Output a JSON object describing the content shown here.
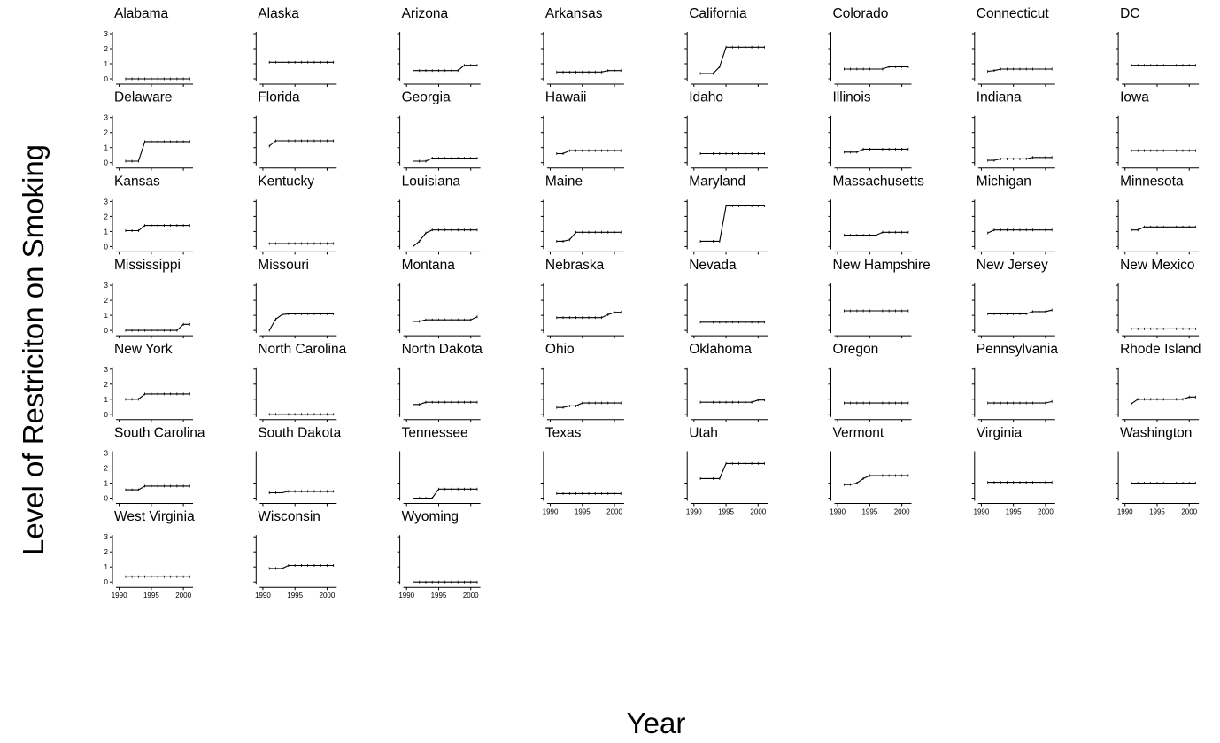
{
  "chart_data": {
    "type": "line",
    "xlabel": "Year",
    "ylabel": "Level of Restriciton on Smoking",
    "x": [
      1991,
      1992,
      1993,
      1994,
      1995,
      1996,
      1997,
      1998,
      1999,
      2000,
      2001
    ],
    "xlim": [
      1989.5,
      2001.5
    ],
    "ylim": [
      -0.05,
      3.1
    ],
    "yticks": [
      0,
      1,
      2,
      3
    ],
    "xticks": [
      1990,
      1995,
      2000
    ],
    "panels": [
      {
        "state": "Alabama",
        "values": [
          0,
          0,
          0,
          0,
          0,
          0,
          0,
          0,
          0,
          0,
          0
        ]
      },
      {
        "state": "Alaska",
        "values": [
          1.1,
          1.1,
          1.1,
          1.1,
          1.1,
          1.1,
          1.1,
          1.1,
          1.1,
          1.1,
          1.1
        ]
      },
      {
        "state": "Arizona",
        "values": [
          0.55,
          0.55,
          0.55,
          0.55,
          0.55,
          0.55,
          0.55,
          0.55,
          0.9,
          0.9,
          0.9
        ]
      },
      {
        "state": "Arkansas",
        "values": [
          0.45,
          0.45,
          0.45,
          0.45,
          0.45,
          0.45,
          0.45,
          0.45,
          0.55,
          0.55,
          0.55
        ]
      },
      {
        "state": "California",
        "values": [
          0.35,
          0.35,
          0.35,
          0.8,
          2.1,
          2.1,
          2.1,
          2.1,
          2.1,
          2.1,
          2.1
        ]
      },
      {
        "state": "Colorado",
        "values": [
          0.65,
          0.65,
          0.65,
          0.65,
          0.65,
          0.65,
          0.65,
          0.8,
          0.8,
          0.8,
          0.8
        ]
      },
      {
        "state": "Connecticut",
        "values": [
          0.5,
          0.55,
          0.65,
          0.65,
          0.65,
          0.65,
          0.65,
          0.65,
          0.65,
          0.65,
          0.65
        ]
      },
      {
        "state": "DC",
        "values": [
          0.9,
          0.9,
          0.9,
          0.9,
          0.9,
          0.9,
          0.9,
          0.9,
          0.9,
          0.9,
          0.9
        ]
      },
      {
        "state": "Delaware",
        "values": [
          0.1,
          0.1,
          0.1,
          1.4,
          1.4,
          1.4,
          1.4,
          1.4,
          1.4,
          1.4,
          1.4
        ]
      },
      {
        "state": "Florida",
        "values": [
          1.1,
          1.45,
          1.45,
          1.45,
          1.45,
          1.45,
          1.45,
          1.45,
          1.45,
          1.45,
          1.45
        ]
      },
      {
        "state": "Georgia",
        "values": [
          0.1,
          0.1,
          0.1,
          0.3,
          0.3,
          0.3,
          0.3,
          0.3,
          0.3,
          0.3,
          0.3
        ]
      },
      {
        "state": "Hawaii",
        "values": [
          0.6,
          0.6,
          0.8,
          0.8,
          0.8,
          0.8,
          0.8,
          0.8,
          0.8,
          0.8,
          0.8
        ]
      },
      {
        "state": "Idaho",
        "values": [
          0.6,
          0.6,
          0.6,
          0.6,
          0.6,
          0.6,
          0.6,
          0.6,
          0.6,
          0.6,
          0.6
        ]
      },
      {
        "state": "Illinois",
        "values": [
          0.7,
          0.7,
          0.7,
          0.9,
          0.9,
          0.9,
          0.9,
          0.9,
          0.9,
          0.9,
          0.9
        ]
      },
      {
        "state": "Indiana",
        "values": [
          0.15,
          0.15,
          0.25,
          0.25,
          0.25,
          0.25,
          0.25,
          0.35,
          0.35,
          0.35,
          0.35
        ]
      },
      {
        "state": "Iowa",
        "values": [
          0.8,
          0.8,
          0.8,
          0.8,
          0.8,
          0.8,
          0.8,
          0.8,
          0.8,
          0.8,
          0.8
        ]
      },
      {
        "state": "Kansas",
        "values": [
          1.05,
          1.05,
          1.05,
          1.4,
          1.4,
          1.4,
          1.4,
          1.4,
          1.4,
          1.4,
          1.4
        ]
      },
      {
        "state": "Kentucky",
        "values": [
          0.2,
          0.2,
          0.2,
          0.2,
          0.2,
          0.2,
          0.2,
          0.2,
          0.2,
          0.2,
          0.2
        ]
      },
      {
        "state": "Louisiana",
        "values": [
          0.0,
          0.35,
          0.9,
          1.1,
          1.1,
          1.1,
          1.1,
          1.1,
          1.1,
          1.1,
          1.1
        ]
      },
      {
        "state": "Maine",
        "values": [
          0.35,
          0.35,
          0.45,
          0.95,
          0.95,
          0.95,
          0.95,
          0.95,
          0.95,
          0.95,
          0.95
        ]
      },
      {
        "state": "Maryland",
        "values": [
          0.35,
          0.35,
          0.35,
          0.35,
          2.7,
          2.7,
          2.7,
          2.7,
          2.7,
          2.7,
          2.7
        ]
      },
      {
        "state": "Massachusetts",
        "values": [
          0.75,
          0.75,
          0.75,
          0.75,
          0.75,
          0.75,
          0.95,
          0.95,
          0.95,
          0.95,
          0.95
        ]
      },
      {
        "state": "Michigan",
        "values": [
          0.9,
          1.1,
          1.1,
          1.1,
          1.1,
          1.1,
          1.1,
          1.1,
          1.1,
          1.1,
          1.1
        ]
      },
      {
        "state": "Minnesota",
        "values": [
          1.1,
          1.1,
          1.3,
          1.3,
          1.3,
          1.3,
          1.3,
          1.3,
          1.3,
          1.3,
          1.3
        ]
      },
      {
        "state": "Mississippi",
        "values": [
          0,
          0,
          0,
          0,
          0,
          0,
          0,
          0,
          0,
          0.4,
          0.4
        ]
      },
      {
        "state": "Missouri",
        "values": [
          0.0,
          0.75,
          1.05,
          1.1,
          1.1,
          1.1,
          1.1,
          1.1,
          1.1,
          1.1,
          1.1
        ]
      },
      {
        "state": "Montana",
        "values": [
          0.6,
          0.6,
          0.7,
          0.7,
          0.7,
          0.7,
          0.7,
          0.7,
          0.7,
          0.7,
          0.9
        ]
      },
      {
        "state": "Nebraska",
        "values": [
          0.85,
          0.85,
          0.85,
          0.85,
          0.85,
          0.85,
          0.85,
          0.85,
          1.05,
          1.2,
          1.2
        ]
      },
      {
        "state": "Nevada",
        "values": [
          0.55,
          0.55,
          0.55,
          0.55,
          0.55,
          0.55,
          0.55,
          0.55,
          0.55,
          0.55,
          0.55
        ]
      },
      {
        "state": "New Hampshire",
        "values": [
          1.3,
          1.3,
          1.3,
          1.3,
          1.3,
          1.3,
          1.3,
          1.3,
          1.3,
          1.3,
          1.3
        ]
      },
      {
        "state": "New Jersey",
        "values": [
          1.1,
          1.1,
          1.1,
          1.1,
          1.1,
          1.1,
          1.1,
          1.25,
          1.25,
          1.25,
          1.35
        ]
      },
      {
        "state": "New Mexico",
        "values": [
          0.1,
          0.1,
          0.1,
          0.1,
          0.1,
          0.1,
          0.1,
          0.1,
          0.1,
          0.1,
          0.1
        ]
      },
      {
        "state": "New York",
        "values": [
          1.0,
          1.0,
          1.0,
          1.35,
          1.35,
          1.35,
          1.35,
          1.35,
          1.35,
          1.35,
          1.35
        ]
      },
      {
        "state": "North Carolina",
        "values": [
          0,
          0,
          0,
          0,
          0,
          0,
          0,
          0,
          0,
          0,
          0
        ]
      },
      {
        "state": "North Dakota",
        "values": [
          0.65,
          0.65,
          0.8,
          0.8,
          0.8,
          0.8,
          0.8,
          0.8,
          0.8,
          0.8,
          0.8
        ]
      },
      {
        "state": "Ohio",
        "values": [
          0.45,
          0.45,
          0.55,
          0.55,
          0.75,
          0.75,
          0.75,
          0.75,
          0.75,
          0.75,
          0.75
        ]
      },
      {
        "state": "Oklahoma",
        "values": [
          0.8,
          0.8,
          0.8,
          0.8,
          0.8,
          0.8,
          0.8,
          0.8,
          0.8,
          0.95,
          0.95
        ]
      },
      {
        "state": "Oregon",
        "values": [
          0.75,
          0.75,
          0.75,
          0.75,
          0.75,
          0.75,
          0.75,
          0.75,
          0.75,
          0.75,
          0.75
        ]
      },
      {
        "state": "Pennsylvania",
        "values": [
          0.75,
          0.75,
          0.75,
          0.75,
          0.75,
          0.75,
          0.75,
          0.75,
          0.75,
          0.75,
          0.85
        ]
      },
      {
        "state": "Rhode Island",
        "values": [
          0.7,
          1.0,
          1.0,
          1.0,
          1.0,
          1.0,
          1.0,
          1.0,
          1.0,
          1.15,
          1.15
        ]
      },
      {
        "state": "South Carolina",
        "values": [
          0.55,
          0.55,
          0.55,
          0.8,
          0.8,
          0.8,
          0.8,
          0.8,
          0.8,
          0.8,
          0.8
        ]
      },
      {
        "state": "South Dakota",
        "values": [
          0.35,
          0.35,
          0.35,
          0.45,
          0.45,
          0.45,
          0.45,
          0.45,
          0.45,
          0.45,
          0.45
        ]
      },
      {
        "state": "Tennessee",
        "values": [
          0,
          0,
          0,
          0,
          0.6,
          0.6,
          0.6,
          0.6,
          0.6,
          0.6,
          0.6
        ]
      },
      {
        "state": "Texas",
        "values": [
          0.3,
          0.3,
          0.3,
          0.3,
          0.3,
          0.3,
          0.3,
          0.3,
          0.3,
          0.3,
          0.3
        ]
      },
      {
        "state": "Utah",
        "values": [
          1.3,
          1.3,
          1.3,
          1.3,
          2.3,
          2.3,
          2.3,
          2.3,
          2.3,
          2.3,
          2.3
        ]
      },
      {
        "state": "Vermont",
        "values": [
          0.9,
          0.9,
          1.0,
          1.3,
          1.5,
          1.5,
          1.5,
          1.5,
          1.5,
          1.5,
          1.5
        ]
      },
      {
        "state": "Virginia",
        "values": [
          1.05,
          1.05,
          1.05,
          1.05,
          1.05,
          1.05,
          1.05,
          1.05,
          1.05,
          1.05,
          1.05
        ]
      },
      {
        "state": "Washington",
        "values": [
          1.0,
          1.0,
          1.0,
          1.0,
          1.0,
          1.0,
          1.0,
          1.0,
          1.0,
          1.0,
          1.0
        ]
      },
      {
        "state": "West Virginia",
        "values": [
          0.35,
          0.35,
          0.35,
          0.35,
          0.35,
          0.35,
          0.35,
          0.35,
          0.35,
          0.35,
          0.35
        ]
      },
      {
        "state": "Wisconsin",
        "values": [
          0.9,
          0.9,
          0.9,
          1.1,
          1.1,
          1.1,
          1.1,
          1.1,
          1.1,
          1.1,
          1.1
        ]
      },
      {
        "state": "Wyoming",
        "values": [
          0,
          0,
          0,
          0,
          0,
          0,
          0,
          0,
          0,
          0,
          0
        ]
      }
    ]
  }
}
